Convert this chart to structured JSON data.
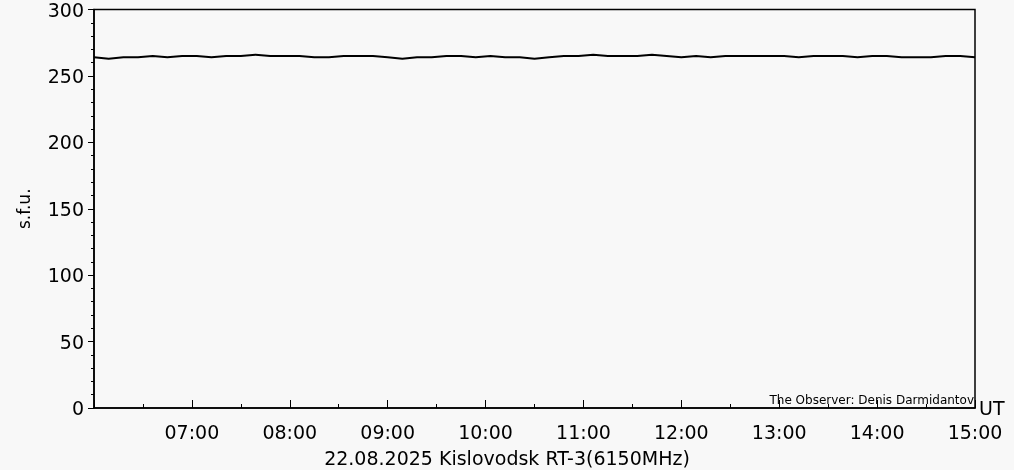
{
  "chart_data": {
    "type": "line",
    "title": "22.08.2025 Kislovodsk RT-3(6150MHz)",
    "xlabel": "UT",
    "ylabel": "s.f.u.",
    "annotations": [
      "The Observer: Denis Darmidantov"
    ],
    "x": [
      6.0,
      6.15,
      6.3,
      6.45,
      6.6,
      6.75,
      6.9,
      7.05,
      7.2,
      7.35,
      7.5,
      7.65,
      7.8,
      7.95,
      8.1,
      8.25,
      8.4,
      8.55,
      8.7,
      8.85,
      9.0,
      9.15,
      9.3,
      9.45,
      9.6,
      9.75,
      9.9,
      10.05,
      10.2,
      10.35,
      10.5,
      10.65,
      10.8,
      10.95,
      11.1,
      11.25,
      11.4,
      11.55,
      11.7,
      11.85,
      12.0,
      12.15,
      12.3,
      12.45,
      12.6,
      12.75,
      12.9,
      13.05,
      13.2,
      13.35,
      13.5,
      13.65,
      13.8,
      13.95,
      14.1,
      14.25,
      14.4,
      14.55,
      14.7,
      14.85,
      15.0
    ],
    "series": [
      {
        "color": "#000000",
        "values": [
          264,
          263,
          264,
          264,
          265,
          264,
          265,
          265,
          264,
          265,
          265,
          266,
          265,
          265,
          265,
          264,
          264,
          265,
          265,
          265,
          264,
          263,
          264,
          264,
          265,
          265,
          264,
          265,
          264,
          264,
          263,
          264,
          265,
          265,
          266,
          265,
          265,
          265,
          266,
          265,
          264,
          265,
          264,
          265,
          265,
          265,
          265,
          265,
          264,
          265,
          265,
          265,
          264,
          265,
          265,
          264,
          264,
          264,
          265,
          265,
          264
        ]
      }
    ],
    "xlim": [
      6,
      15
    ],
    "xticks": [
      {
        "value": 6,
        "label": null
      },
      {
        "value": 7,
        "label": "07:00"
      },
      {
        "value": 8,
        "label": "08:00"
      },
      {
        "value": 9,
        "label": "09:00"
      },
      {
        "value": 10,
        "label": "10:00"
      },
      {
        "value": 11,
        "label": "11:00"
      },
      {
        "value": 12,
        "label": "12:00"
      },
      {
        "value": 13,
        "label": "13:00"
      },
      {
        "value": 14,
        "label": "14:00"
      },
      {
        "value": 15,
        "label": "15:00"
      }
    ],
    "ylim": [
      0,
      300
    ],
    "yticks": [
      0,
      50,
      100,
      150,
      200,
      250,
      300
    ],
    "grid": false,
    "marker": "none",
    "line_style": "solid"
  }
}
